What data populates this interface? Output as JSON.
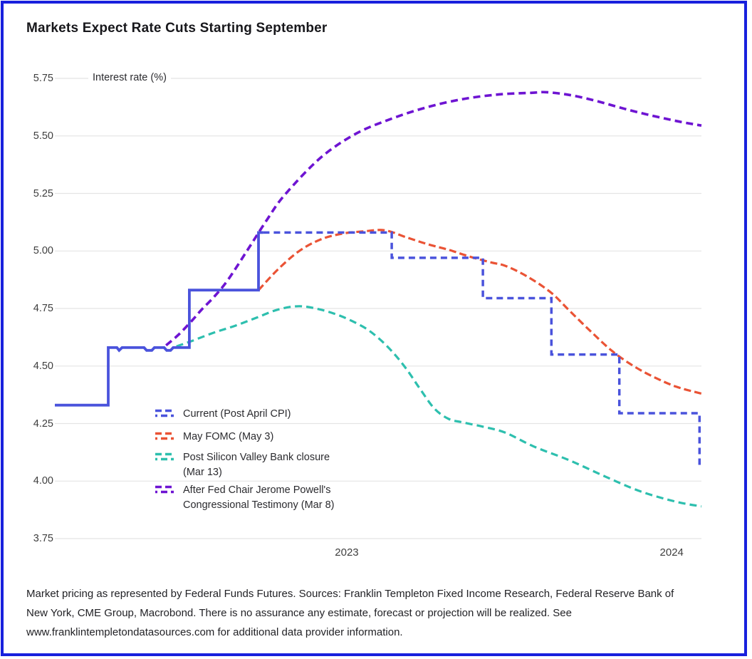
{
  "title": "Markets Expect Rate Cuts Starting September",
  "footer": {
    "lines": [
      "Market pricing as represented by Federal Funds Futures. Sources: Franklin Templeton Fixed Income Research, Federal Reserve Bank of",
      "New York, CME Group, Macrobond. There is no assurance any estimate, forecast or projection will be realized. See",
      "www.franklintempletondatasources.com for additional data provider information."
    ]
  },
  "colors": {
    "border": "#1820dd",
    "grid": "#e4e4e4",
    "current": "#4a53dc",
    "may_fomc": "#ea5335",
    "post_svb": "#2dbfae",
    "powell": "#6e14d2",
    "axis_text": "#3e3e3e",
    "title_text": "#17171b"
  },
  "chart_data": {
    "type": "line",
    "title": "Markets Expect Rate Cuts Starting September",
    "y_axis_title": "Interest rate (%)",
    "xlabel": "",
    "ylabel": "Interest rate (%)",
    "ylim": [
      3.75,
      5.75
    ],
    "yticks": [
      "5.75",
      "5.50",
      "5.25",
      "5.00",
      "4.75",
      "4.50",
      "4.25",
      "4.00",
      "3.75"
    ],
    "xticks": [
      {
        "label": "2023",
        "pos": 0.4515
      },
      {
        "label": "2024",
        "pos": 0.954
      }
    ],
    "grid": "horizontal",
    "legend_position": "inside-lower-left",
    "x_unit": "fraction of x-axis (Jan 2023 to early 2024)",
    "series": [
      {
        "id": "current",
        "name": "Current (Post April CPI)",
        "legend_lines": [
          "Current (Post April CPI)"
        ],
        "color_key": "current",
        "style": "dashed-with-solid-history",
        "solid_history_points": [
          [
            0.0,
            4.33
          ],
          [
            0.0826,
            4.33
          ],
          [
            0.0826,
            4.58
          ],
          [
            0.096,
            4.58
          ],
          [
            0.0995,
            4.568
          ],
          [
            0.104,
            4.58
          ],
          [
            0.138,
            4.58
          ],
          [
            0.142,
            4.568
          ],
          [
            0.15,
            4.568
          ],
          [
            0.154,
            4.58
          ],
          [
            0.169,
            4.58
          ],
          [
            0.173,
            4.568
          ],
          [
            0.179,
            4.568
          ],
          [
            0.183,
            4.58
          ],
          [
            0.208,
            4.58
          ],
          [
            0.208,
            4.83
          ],
          [
            0.315,
            4.83
          ],
          [
            0.315,
            5.08
          ],
          [
            0.322,
            5.08
          ]
        ],
        "points": [
          [
            0.322,
            5.08
          ],
          [
            0.521,
            5.08
          ],
          [
            0.521,
            4.97
          ],
          [
            0.662,
            4.97
          ],
          [
            0.662,
            4.795
          ],
          [
            0.768,
            4.795
          ],
          [
            0.768,
            4.55
          ],
          [
            0.873,
            4.55
          ],
          [
            0.873,
            4.295
          ],
          [
            0.997,
            4.295
          ],
          [
            0.997,
            4.06
          ]
        ]
      },
      {
        "id": "may-fomc",
        "name": "May FOMC (May 3)",
        "legend_lines": [
          "May FOMC (May 3)"
        ],
        "color_key": "may_fomc",
        "style": "dashed",
        "points": [
          [
            0.315,
            4.83
          ],
          [
            0.345,
            4.92
          ],
          [
            0.378,
            5.0
          ],
          [
            0.411,
            5.05
          ],
          [
            0.444,
            5.075
          ],
          [
            0.477,
            5.085
          ],
          [
            0.51,
            5.09
          ],
          [
            0.543,
            5.06
          ],
          [
            0.576,
            5.03
          ],
          [
            0.609,
            5.005
          ],
          [
            0.642,
            4.975
          ],
          [
            0.675,
            4.95
          ],
          [
            0.697,
            4.935
          ],
          [
            0.73,
            4.89
          ],
          [
            0.767,
            4.82
          ],
          [
            0.796,
            4.74
          ],
          [
            0.829,
            4.65
          ],
          [
            0.862,
            4.565
          ],
          [
            0.895,
            4.5
          ],
          [
            0.928,
            4.45
          ],
          [
            0.961,
            4.41
          ],
          [
            1.0,
            4.38
          ]
        ]
      },
      {
        "id": "post-svb",
        "name": "Post Silicon Valley Bank closure (Mar 13)",
        "legend_lines": [
          "Post Silicon Valley Bank closure",
          "(Mar 13)"
        ],
        "color_key": "post_svb",
        "style": "dashed",
        "points": [
          [
            0.188,
            4.585
          ],
          [
            0.213,
            4.61
          ],
          [
            0.246,
            4.645
          ],
          [
            0.279,
            4.675
          ],
          [
            0.312,
            4.71
          ],
          [
            0.345,
            4.745
          ],
          [
            0.378,
            4.76
          ],
          [
            0.411,
            4.745
          ],
          [
            0.444,
            4.715
          ],
          [
            0.477,
            4.67
          ],
          [
            0.499,
            4.625
          ],
          [
            0.521,
            4.565
          ],
          [
            0.543,
            4.49
          ],
          [
            0.565,
            4.4
          ],
          [
            0.587,
            4.315
          ],
          [
            0.609,
            4.27
          ],
          [
            0.631,
            4.255
          ],
          [
            0.664,
            4.235
          ],
          [
            0.697,
            4.21
          ],
          [
            0.741,
            4.15
          ],
          [
            0.796,
            4.09
          ],
          [
            0.851,
            4.02
          ],
          [
            0.906,
            3.955
          ],
          [
            0.961,
            3.91
          ],
          [
            1.0,
            3.89
          ]
        ]
      },
      {
        "id": "powell-testimony",
        "name": "After Fed Chair Jerome Powell's Congressional Testimony (Mar 8)",
        "legend_lines": [
          "After Fed Chair Jerome Powell's",
          "Congressional Testimony (Mar 8)"
        ],
        "color_key": "powell",
        "style": "dashed",
        "points": [
          [
            0.172,
            4.59
          ],
          [
            0.191,
            4.635
          ],
          [
            0.213,
            4.7
          ],
          [
            0.227,
            4.745
          ],
          [
            0.246,
            4.8
          ],
          [
            0.268,
            4.875
          ],
          [
            0.297,
            5.0
          ],
          [
            0.328,
            5.135
          ],
          [
            0.356,
            5.245
          ],
          [
            0.411,
            5.405
          ],
          [
            0.466,
            5.51
          ],
          [
            0.521,
            5.575
          ],
          [
            0.576,
            5.625
          ],
          [
            0.631,
            5.66
          ],
          [
            0.686,
            5.68
          ],
          [
            0.737,
            5.687
          ],
          [
            0.76,
            5.69
          ],
          [
            0.796,
            5.678
          ],
          [
            0.833,
            5.655
          ],
          [
            0.869,
            5.627
          ],
          [
            0.906,
            5.6
          ],
          [
            0.961,
            5.565
          ],
          [
            1.0,
            5.545
          ]
        ]
      }
    ]
  }
}
